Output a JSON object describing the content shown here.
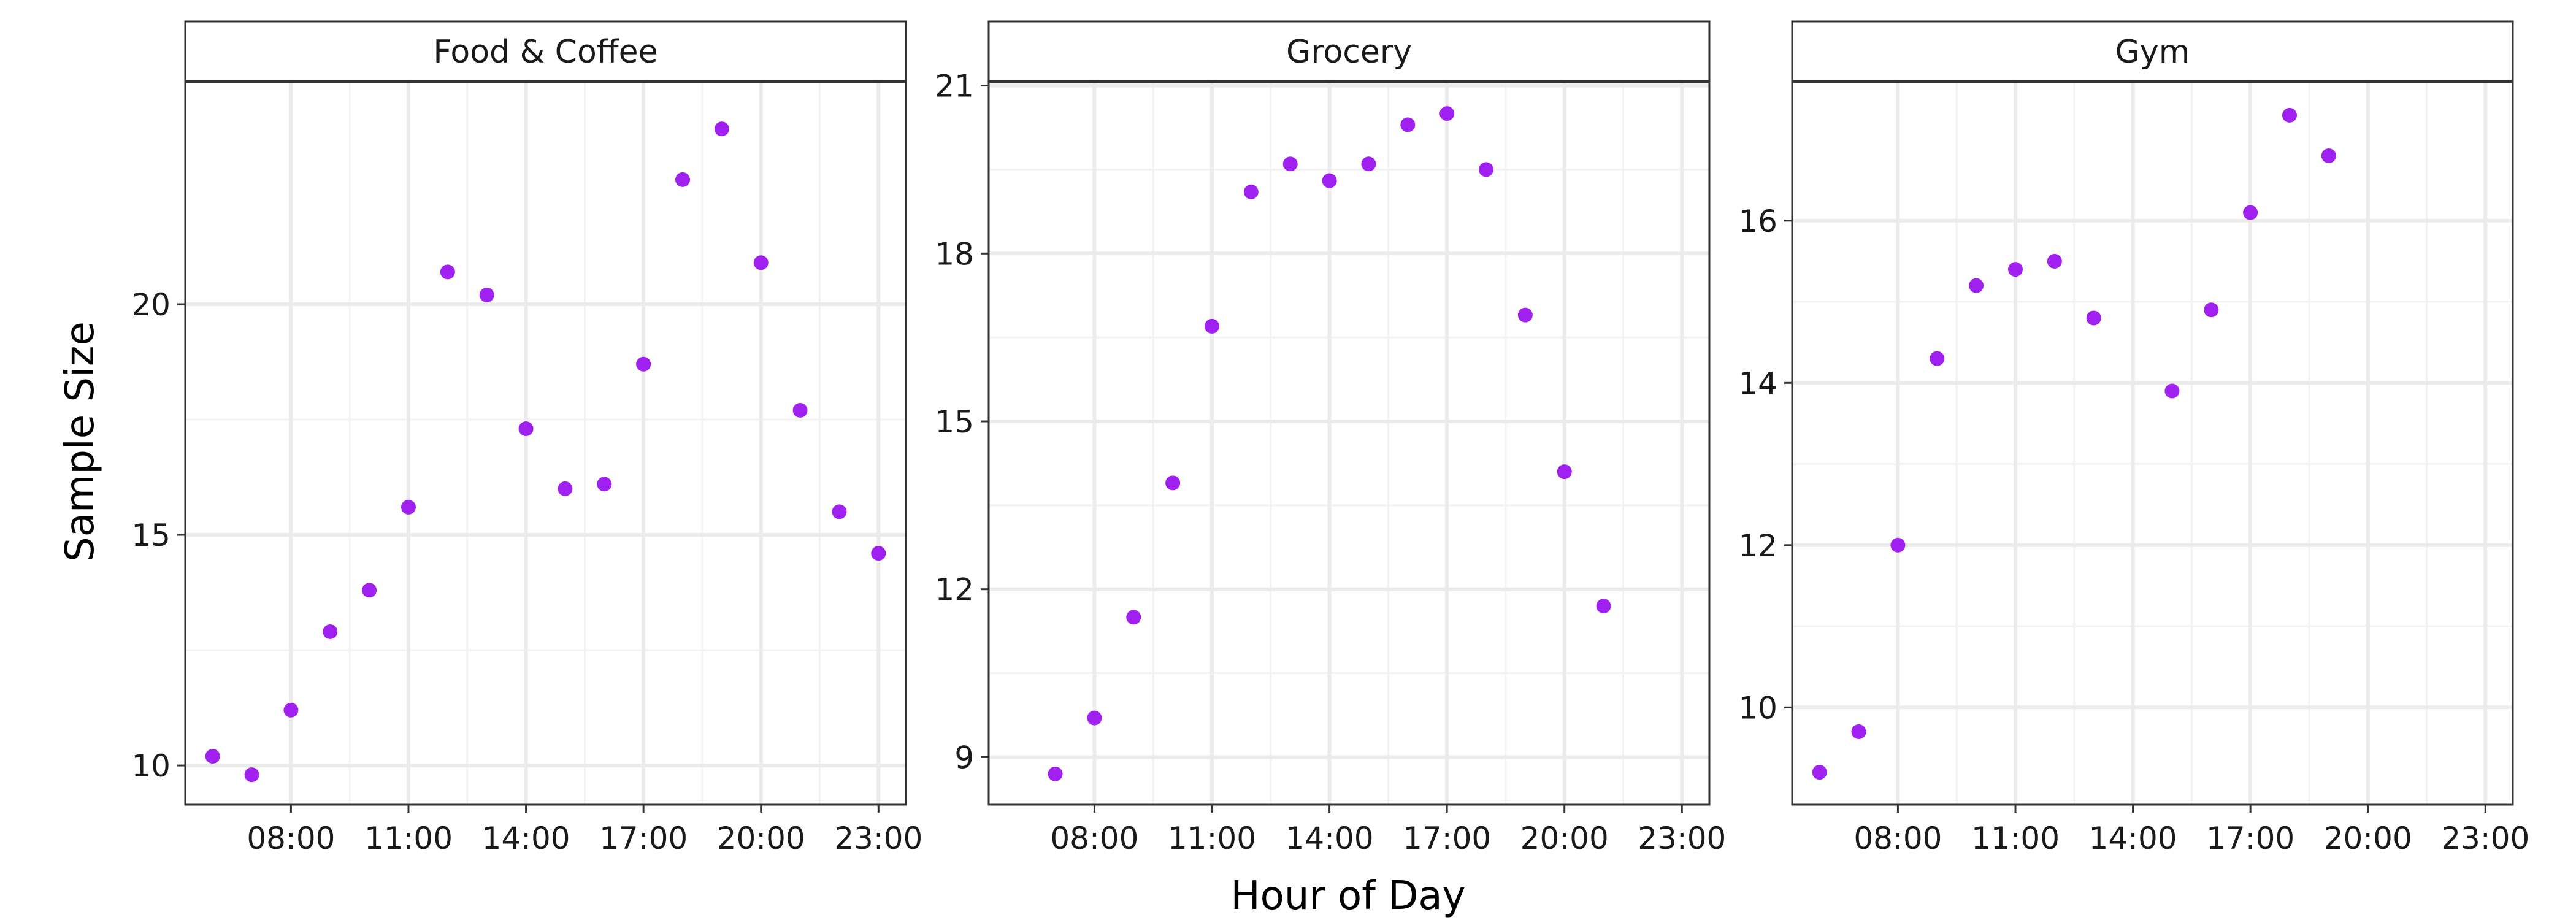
{
  "chart_data": {
    "type": "scatter",
    "layout": "facet_wrap",
    "xlabel": "Hour of Day",
    "ylabel": "Sample Size",
    "point_color": "#a020f0",
    "x_ticks": [
      "08:00",
      "11:00",
      "14:00",
      "17:00",
      "20:00",
      "23:00"
    ],
    "xlim": [
      5.3,
      23.7
    ],
    "grid": true,
    "facets": [
      {
        "title": "Food & Coffee",
        "ylim": [
          9.15,
          24.8
        ],
        "y_ticks": [
          10,
          15,
          20
        ],
        "points": [
          {
            "x": 6,
            "y": 10.2
          },
          {
            "x": 7,
            "y": 9.8
          },
          {
            "x": 8,
            "y": 11.2
          },
          {
            "x": 9,
            "y": 12.9
          },
          {
            "x": 10,
            "y": 13.8
          },
          {
            "x": 11,
            "y": 15.6
          },
          {
            "x": 12,
            "y": 20.7
          },
          {
            "x": 13,
            "y": 20.2
          },
          {
            "x": 14,
            "y": 17.3
          },
          {
            "x": 15,
            "y": 16.0
          },
          {
            "x": 16,
            "y": 16.1
          },
          {
            "x": 17,
            "y": 18.7
          },
          {
            "x": 18,
            "y": 22.7
          },
          {
            "x": 19,
            "y": 23.8
          },
          {
            "x": 20,
            "y": 20.9
          },
          {
            "x": 21,
            "y": 17.7
          },
          {
            "x": 22,
            "y": 15.5
          },
          {
            "x": 23,
            "y": 14.6
          }
        ]
      },
      {
        "title": "Grocery",
        "ylim": [
          8.15,
          21.05
        ],
        "y_ticks": [
          9,
          12,
          15,
          18,
          21
        ],
        "points": [
          {
            "x": 7,
            "y": 8.7
          },
          {
            "x": 8,
            "y": 9.7
          },
          {
            "x": 9,
            "y": 11.5
          },
          {
            "x": 10,
            "y": 13.9
          },
          {
            "x": 11,
            "y": 16.7
          },
          {
            "x": 12,
            "y": 19.1
          },
          {
            "x": 13,
            "y": 19.6
          },
          {
            "x": 14,
            "y": 19.3
          },
          {
            "x": 15,
            "y": 19.6
          },
          {
            "x": 16,
            "y": 20.3
          },
          {
            "x": 17,
            "y": 20.5
          },
          {
            "x": 18,
            "y": 19.5
          },
          {
            "x": 19,
            "y": 16.9
          },
          {
            "x": 20,
            "y": 14.1
          },
          {
            "x": 21,
            "y": 11.7
          }
        ]
      },
      {
        "title": "Gym",
        "ylim": [
          8.8,
          17.7
        ],
        "y_ticks": [
          10,
          12,
          14,
          16
        ],
        "points": [
          {
            "x": 6,
            "y": 9.2
          },
          {
            "x": 7,
            "y": 9.7
          },
          {
            "x": 8,
            "y": 12.0
          },
          {
            "x": 9,
            "y": 14.3
          },
          {
            "x": 10,
            "y": 15.2
          },
          {
            "x": 11,
            "y": 15.4
          },
          {
            "x": 12,
            "y": 15.5
          },
          {
            "x": 13,
            "y": 14.8
          },
          {
            "x": 15,
            "y": 13.9
          },
          {
            "x": 16,
            "y": 14.9
          },
          {
            "x": 17,
            "y": 16.1
          },
          {
            "x": 18,
            "y": 17.3
          },
          {
            "x": 19,
            "y": 16.8
          }
        ]
      }
    ]
  }
}
